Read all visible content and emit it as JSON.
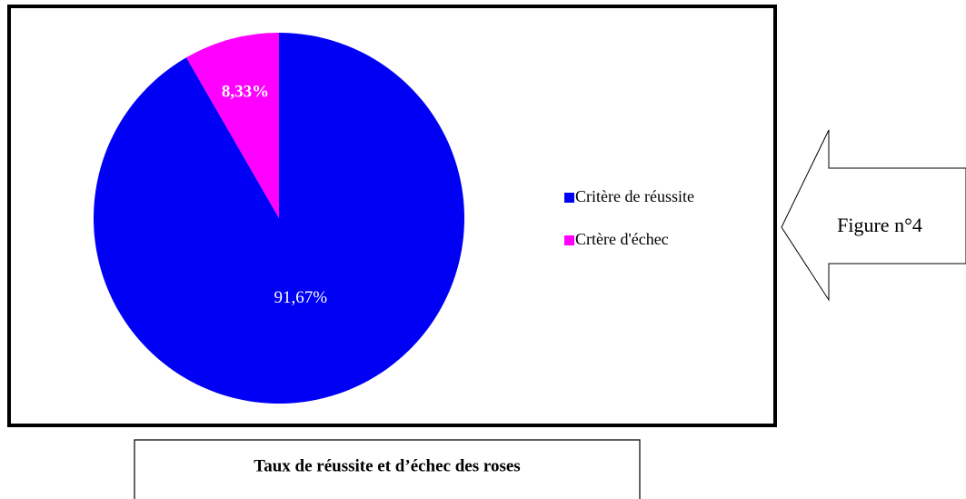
{
  "chart_data": {
    "type": "pie",
    "categories": [
      "Critère de réussite",
      "Crtère d'échec"
    ],
    "values": [
      91.67,
      8.33
    ],
    "value_labels": [
      "91,67%",
      "8,33%"
    ],
    "colors": [
      "#0000f5",
      "#ff00ff"
    ],
    "legend": "right",
    "caption": "Taux de réussite et d’échec des roses",
    "annotation": "Figure n°4"
  }
}
